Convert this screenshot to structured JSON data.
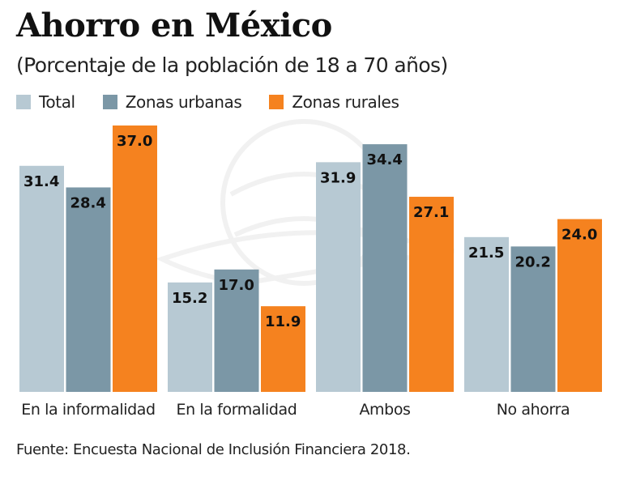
{
  "chart_data": {
    "type": "bar",
    "title": "Ahorro en México",
    "subtitle": "(Porcentaje de la población de 18 a 70 años)",
    "xlabel": "",
    "ylabel": "",
    "ylim": [
      0,
      37
    ],
    "grid": false,
    "legend_position": "top-left",
    "categories": [
      "En la informalidad",
      "En la formalidad",
      "Ambos",
      "No ahorra"
    ],
    "series": [
      {
        "name": "Total",
        "color": "#b7c9d3",
        "values": [
          31.4,
          15.2,
          31.9,
          21.5
        ]
      },
      {
        "name": "Zonas urbanas",
        "color": "#7b97a6",
        "values": [
          28.4,
          17.0,
          34.4,
          20.2
        ]
      },
      {
        "name": "Zonas rurales",
        "color": "#f5821f",
        "values": [
          37.0,
          11.9,
          27.1,
          24.0
        ]
      }
    ],
    "value_labels": [
      [
        "31.4",
        "15.2",
        "31.9",
        "21.5"
      ],
      [
        "28.4",
        "17.0",
        "34.4",
        "20.2"
      ],
      [
        "37.0",
        "11.9",
        "27.1",
        "24.0"
      ]
    ],
    "source": "Fuente: Encuesta Nacional de Inclusión Financiera 2018."
  }
}
